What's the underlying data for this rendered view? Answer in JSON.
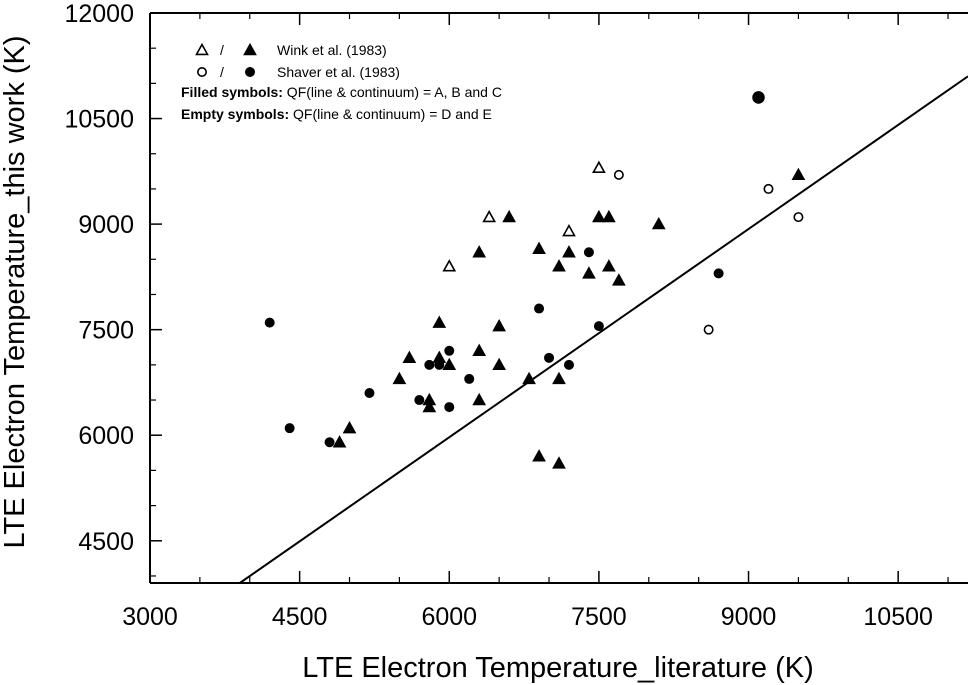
{
  "chart_data": {
    "type": "scatter",
    "title": "",
    "xlabel": "LTE Electron Temperature_literature (K)",
    "ylabel": "LTE Electron Temperature_this work (K)",
    "xlim": [
      3000,
      11200
    ],
    "ylim": [
      3900,
      12000
    ],
    "x_ticks": [
      "3000",
      "4500",
      "6000",
      "7500",
      "9000",
      "10500"
    ],
    "y_ticks": [
      "4500",
      "6000",
      "7500",
      "9000",
      "10500",
      "12000"
    ],
    "fit_line": {
      "x": [
        3900,
        11200
      ],
      "y": [
        3900,
        11100
      ]
    },
    "series": [
      {
        "name": "Wink et al. (1983)",
        "quality": "A, B and C",
        "marker": "triangle",
        "filled": true,
        "points": [
          [
            4900,
            5900
          ],
          [
            5000,
            6100
          ],
          [
            5500,
            6800
          ],
          [
            5600,
            7100
          ],
          [
            5800,
            6500
          ],
          [
            5800,
            6400
          ],
          [
            5900,
            7600
          ],
          [
            5900,
            7100
          ],
          [
            6000,
            7000
          ],
          [
            6300,
            6500
          ],
          [
            6300,
            7200
          ],
          [
            6300,
            8600
          ],
          [
            6500,
            7550
          ],
          [
            6500,
            7000
          ],
          [
            6600,
            9100
          ],
          [
            6800,
            6800
          ],
          [
            6900,
            8650
          ],
          [
            6900,
            5700
          ],
          [
            7100,
            6800
          ],
          [
            7100,
            8400
          ],
          [
            7100,
            5600
          ],
          [
            7200,
            8600
          ],
          [
            7400,
            8300
          ],
          [
            7500,
            9100
          ],
          [
            7600,
            9100
          ],
          [
            7600,
            8400
          ],
          [
            7700,
            8200
          ],
          [
            8100,
            9000
          ],
          [
            9500,
            9700
          ]
        ]
      },
      {
        "name": "Wink et al. (1983)",
        "quality": "D and E",
        "marker": "triangle",
        "filled": false,
        "points": [
          [
            6000,
            8400
          ],
          [
            6400,
            9100
          ],
          [
            7200,
            8900
          ],
          [
            7500,
            9800
          ]
        ]
      },
      {
        "name": "Shaver et al. (1983)",
        "quality": "A, B and C",
        "marker": "circle",
        "filled": true,
        "points": [
          [
            4200,
            7600
          ],
          [
            4400,
            6100
          ],
          [
            4800,
            5900
          ],
          [
            5200,
            6600
          ],
          [
            5700,
            6500
          ],
          [
            5800,
            7000
          ],
          [
            5900,
            7000
          ],
          [
            6000,
            6400
          ],
          [
            6000,
            7200
          ],
          [
            6200,
            6800
          ],
          [
            6900,
            7800
          ],
          [
            7000,
            7100
          ],
          [
            7200,
            7000
          ],
          [
            7400,
            8600
          ],
          [
            7500,
            7550
          ],
          [
            8700,
            8300
          ],
          [
            9100,
            10800
          ]
        ]
      },
      {
        "name": "Shaver et al. (1983)",
        "quality": "D and E",
        "marker": "circle",
        "filled": false,
        "points": [
          [
            7700,
            9700
          ],
          [
            8600,
            7500
          ],
          [
            9200,
            9500
          ],
          [
            9500,
            9100
          ]
        ]
      }
    ],
    "legend": {
      "position": "top-left",
      "separator": "/",
      "entries": [
        "Wink et al. (1983)",
        "Shaver et al. (1983)"
      ],
      "notes": [
        {
          "bold": "Filled symbols:",
          "text": " QF(line & continuum) = A, B and C"
        },
        {
          "bold": "Empty symbols:",
          "text": " QF(line & continuum) = D and E"
        }
      ]
    }
  }
}
